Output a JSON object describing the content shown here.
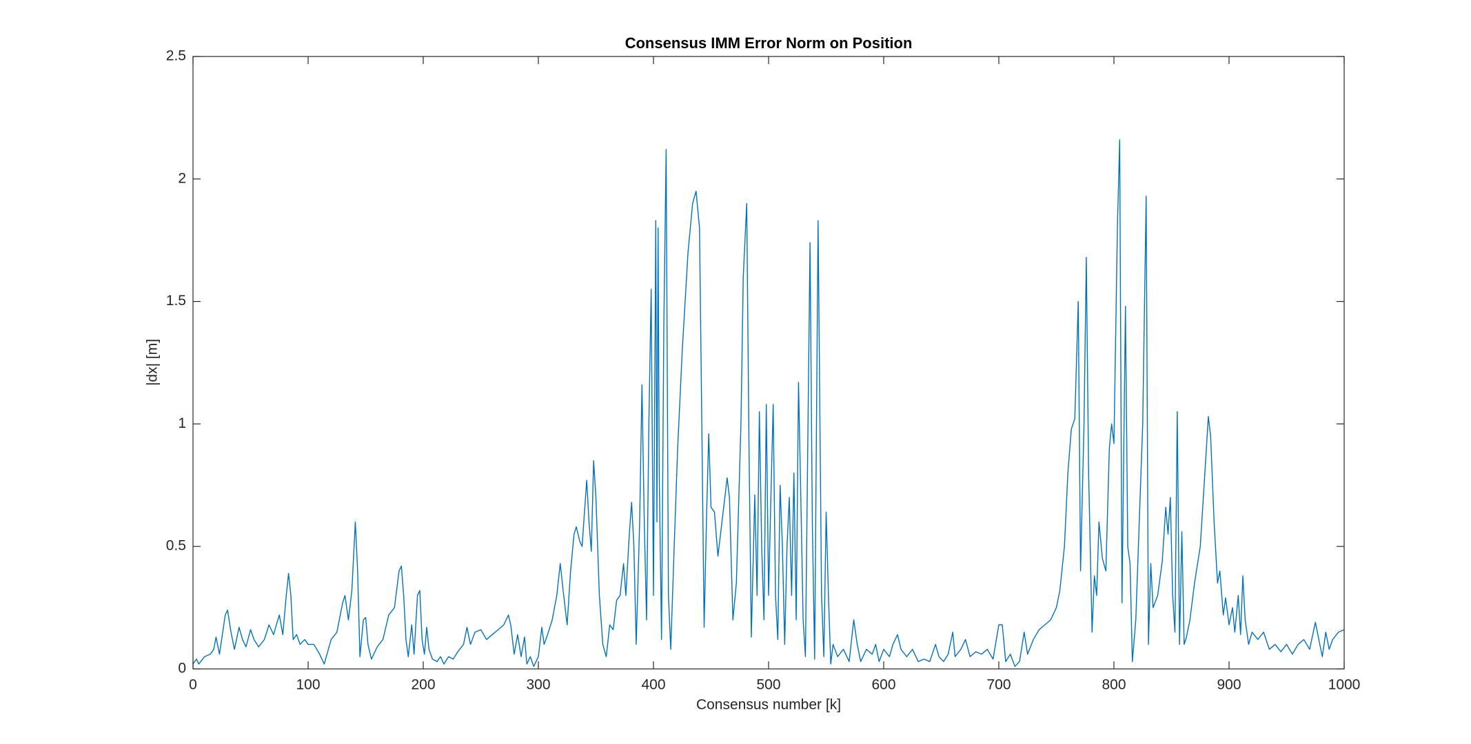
{
  "chart_data": {
    "type": "line",
    "title": "Consensus IMM Error Norm on Position",
    "xlabel": "Consensus number [k]",
    "ylabel": "|dx| [m]",
    "xlim": [
      0,
      1000
    ],
    "xticks": [
      0,
      100,
      200,
      300,
      400,
      500,
      600,
      700,
      800,
      900,
      1000
    ],
    "ylim": [
      0,
      2.5
    ],
    "yticks": [
      0,
      0.5,
      1,
      1.5,
      2,
      2.5
    ],
    "x": [
      0,
      3,
      5,
      10,
      15,
      18,
      20,
      23,
      28,
      30,
      33,
      36,
      40,
      43,
      46,
      50,
      53,
      57,
      62,
      66,
      70,
      73,
      75,
      78,
      81,
      83,
      85,
      87,
      90,
      93,
      97,
      100,
      105,
      110,
      114,
      117,
      120,
      125,
      130,
      132,
      135,
      138,
      141,
      143,
      145,
      148,
      150,
      152,
      155,
      160,
      165,
      170,
      175,
      179,
      181,
      183,
      185,
      187,
      190,
      192,
      195,
      197,
      199,
      201,
      203,
      205,
      208,
      212,
      215,
      218,
      222,
      226,
      230,
      235,
      238,
      241,
      245,
      250,
      255,
      260,
      265,
      270,
      274,
      276,
      279,
      282,
      285,
      288,
      290,
      293,
      296,
      300,
      303,
      305,
      308,
      312,
      316,
      319,
      322,
      325,
      328,
      331,
      333,
      336,
      338,
      342,
      344,
      346,
      348,
      350,
      353,
      356,
      359,
      362,
      365,
      368,
      371,
      374,
      376,
      379,
      381,
      383,
      385,
      388,
      390,
      392,
      394,
      396,
      398,
      400,
      402,
      403,
      404,
      405,
      407,
      409,
      411,
      413,
      415,
      418,
      421,
      425,
      430,
      434,
      437,
      440,
      442,
      444,
      446,
      448,
      450,
      453,
      456,
      460,
      464,
      466,
      469,
      472,
      476,
      478,
      481,
      483,
      485,
      488,
      490,
      492,
      494,
      496,
      498,
      500,
      502,
      504,
      506,
      508,
      510,
      512,
      514,
      516,
      518,
      520,
      522,
      524,
      526,
      528,
      530,
      532,
      536,
      538,
      540,
      543,
      546,
      548,
      550,
      552,
      554,
      556,
      560,
      565,
      570,
      574,
      577,
      580,
      585,
      590,
      593,
      596,
      600,
      605,
      608,
      612,
      615,
      620,
      625,
      630,
      635,
      640,
      645,
      648,
      652,
      656,
      660,
      662,
      667,
      671,
      675,
      680,
      685,
      690,
      695,
      700,
      703,
      706,
      710,
      714,
      718,
      722,
      725,
      730,
      735,
      740,
      745,
      750,
      753,
      757,
      760,
      763,
      766,
      769,
      771,
      774,
      776,
      778,
      781,
      783,
      785,
      787,
      790,
      793,
      796,
      798,
      800,
      803,
      805,
      807,
      810,
      812,
      814,
      816,
      819,
      822,
      825,
      828,
      830,
      832,
      834,
      838,
      842,
      845,
      847,
      849,
      851,
      853,
      855,
      857,
      859,
      861,
      863,
      866,
      870,
      875,
      879,
      882,
      884,
      887,
      890,
      892,
      895,
      897,
      900,
      903,
      905,
      908,
      910,
      912,
      914,
      917,
      920,
      925,
      930,
      935,
      940,
      945,
      950,
      955,
      960,
      965,
      970,
      975,
      978,
      981,
      984,
      987,
      990,
      995,
      1000
    ],
    "series": [
      {
        "name": "|dx|",
        "color": "#0072bd",
        "values": [
          0.02,
          0.04,
          0.02,
          0.05,
          0.06,
          0.08,
          0.13,
          0.06,
          0.22,
          0.24,
          0.15,
          0.08,
          0.17,
          0.12,
          0.09,
          0.16,
          0.12,
          0.09,
          0.12,
          0.18,
          0.14,
          0.19,
          0.22,
          0.14,
          0.3,
          0.39,
          0.3,
          0.12,
          0.14,
          0.1,
          0.12,
          0.1,
          0.1,
          0.06,
          0.02,
          0.07,
          0.12,
          0.15,
          0.27,
          0.3,
          0.2,
          0.32,
          0.6,
          0.4,
          0.05,
          0.2,
          0.21,
          0.1,
          0.04,
          0.09,
          0.12,
          0.22,
          0.25,
          0.4,
          0.42,
          0.3,
          0.12,
          0.05,
          0.18,
          0.06,
          0.3,
          0.32,
          0.12,
          0.06,
          0.17,
          0.08,
          0.04,
          0.03,
          0.05,
          0.02,
          0.05,
          0.04,
          0.07,
          0.1,
          0.17,
          0.1,
          0.15,
          0.16,
          0.12,
          0.14,
          0.16,
          0.18,
          0.22,
          0.18,
          0.06,
          0.14,
          0.05,
          0.13,
          0.02,
          0.05,
          0.01,
          0.05,
          0.17,
          0.1,
          0.14,
          0.2,
          0.3,
          0.43,
          0.3,
          0.18,
          0.4,
          0.55,
          0.58,
          0.52,
          0.5,
          0.77,
          0.6,
          0.48,
          0.85,
          0.7,
          0.3,
          0.1,
          0.05,
          0.18,
          0.16,
          0.28,
          0.3,
          0.43,
          0.3,
          0.55,
          0.68,
          0.5,
          0.1,
          0.6,
          1.16,
          0.6,
          0.2,
          1.0,
          1.55,
          0.3,
          1.83,
          0.6,
          1.8,
          0.8,
          0.12,
          1.4,
          2.12,
          0.3,
          0.08,
          0.5,
          0.9,
          1.3,
          1.7,
          1.9,
          1.95,
          1.8,
          1.0,
          0.17,
          0.6,
          0.96,
          0.66,
          0.64,
          0.46,
          0.62,
          0.78,
          0.7,
          0.2,
          0.35,
          1.0,
          1.6,
          1.9,
          0.9,
          0.13,
          0.71,
          0.3,
          1.05,
          0.5,
          0.2,
          1.08,
          0.3,
          0.7,
          1.08,
          0.3,
          0.12,
          0.75,
          0.5,
          0.1,
          0.5,
          0.7,
          0.3,
          0.8,
          0.2,
          1.17,
          0.7,
          0.2,
          0.05,
          1.74,
          0.6,
          0.04,
          1.83,
          0.3,
          0.05,
          0.64,
          0.3,
          0.02,
          0.1,
          0.05,
          0.08,
          0.03,
          0.2,
          0.1,
          0.03,
          0.08,
          0.06,
          0.1,
          0.03,
          0.08,
          0.05,
          0.1,
          0.14,
          0.08,
          0.05,
          0.08,
          0.03,
          0.04,
          0.03,
          0.1,
          0.05,
          0.03,
          0.06,
          0.15,
          0.05,
          0.08,
          0.12,
          0.05,
          0.07,
          0.06,
          0.08,
          0.04,
          0.18,
          0.18,
          0.03,
          0.06,
          0.01,
          0.03,
          0.15,
          0.06,
          0.12,
          0.16,
          0.18,
          0.2,
          0.25,
          0.32,
          0.5,
          0.8,
          0.98,
          1.02,
          1.5,
          0.4,
          1.0,
          1.68,
          0.8,
          0.15,
          0.38,
          0.3,
          0.6,
          0.45,
          0.4,
          0.9,
          1.0,
          0.92,
          1.8,
          2.16,
          0.27,
          1.48,
          0.5,
          0.43,
          0.03,
          0.2,
          0.6,
          1.0,
          1.93,
          0.1,
          0.43,
          0.25,
          0.3,
          0.44,
          0.66,
          0.55,
          0.7,
          0.3,
          0.15,
          1.05,
          0.1,
          0.56,
          0.1,
          0.13,
          0.2,
          0.35,
          0.5,
          0.8,
          1.03,
          0.95,
          0.6,
          0.35,
          0.4,
          0.22,
          0.29,
          0.18,
          0.25,
          0.15,
          0.3,
          0.14,
          0.38,
          0.2,
          0.1,
          0.15,
          0.12,
          0.15,
          0.08,
          0.1,
          0.07,
          0.1,
          0.06,
          0.1,
          0.12,
          0.08,
          0.19,
          0.12,
          0.05,
          0.15,
          0.08,
          0.12,
          0.15,
          0.16
        ]
      }
    ]
  }
}
